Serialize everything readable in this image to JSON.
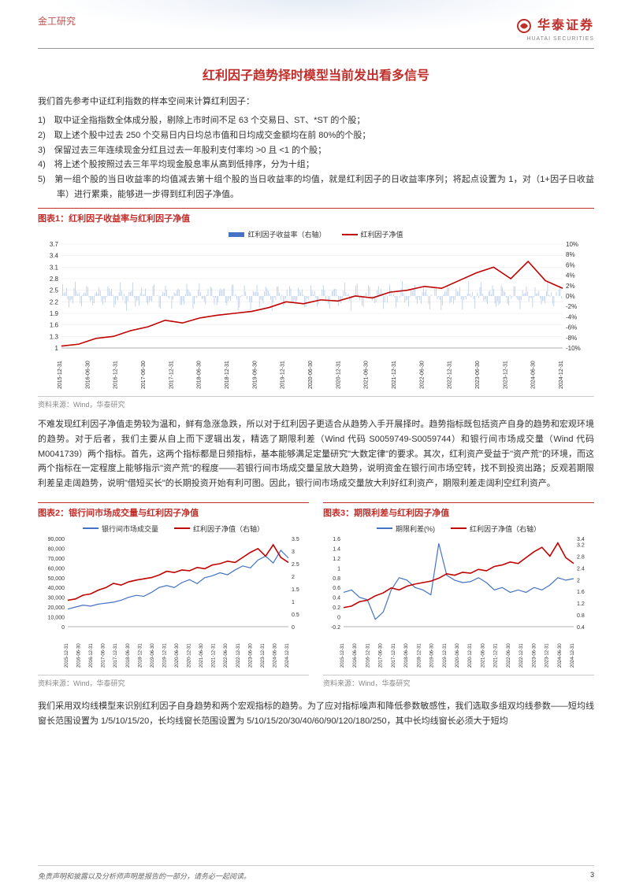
{
  "header": {
    "category": "金工研究",
    "logo_cn": "华泰证券",
    "logo_en": "HUATAI SECURITIES"
  },
  "title": "红利因子趋势择时模型当前发出看多信号",
  "intro": "我们首先参考中证红利指数的样本空间来计算红利因子：",
  "list": [
    "1)　取中证全指指数全体成分股，剔除上市时间不足 63 个交易日、ST、*ST 的个股；",
    "2)　取上述个股中过去 250 个交易日内日均总市值和日均成交金额均在前 80%的个股；",
    "3)　保留过去三年连续现金分红且过去一年股利支付率均 >0 且 <1 的个股；",
    "4)　将上述个股按照过去三年平均现金股息率从高到低排序，分为十组；",
    "5)　第一组个股的当日收益率的均值减去第十组个股的当日收益率的均值，就是红利因子的日收益率序列；将起点设置为 1，对（1+因子日收益率）进行累乘，能够进一步得到红利因子净值。"
  ],
  "chart1": {
    "title": "图表1：红利因子收益率与红利因子净值",
    "legend": [
      {
        "label": "红利因子收益率（右轴）",
        "color": "#4472c4"
      },
      {
        "label": "红利因子净值",
        "color": "#c00000"
      }
    ],
    "y_left_ticks": [
      1.0,
      1.3,
      1.6,
      1.9,
      2.2,
      2.5,
      2.8,
      3.1,
      3.4,
      3.7
    ],
    "y_right_ticks": [
      "-10%",
      "-8%",
      "-6%",
      "-4%",
      "-2%",
      "0%",
      "2%",
      "4%",
      "6%",
      "8%",
      "10%"
    ],
    "x_ticks": [
      "2015-12-31",
      "2016-06-30",
      "2016-12-31",
      "2017-06-30",
      "2017-12-31",
      "2018-06-30",
      "2018-12-31",
      "2019-06-30",
      "2019-12-31",
      "2020-06-30",
      "2020-12-31",
      "2021-06-30",
      "2021-12-31",
      "2022-06-30",
      "2022-12-31",
      "2023-06-30",
      "2023-12-31",
      "2024-06-30",
      "2024-12-31"
    ],
    "red_line": [
      1.05,
      1.1,
      1.25,
      1.3,
      1.45,
      1.55,
      1.72,
      1.65,
      1.78,
      1.85,
      1.9,
      1.95,
      2.05,
      2.2,
      2.15,
      2.25,
      2.22,
      2.35,
      2.3,
      2.45,
      2.5,
      2.6,
      2.55,
      2.75,
      2.95,
      3.1,
      2.8,
      3.25,
      2.75,
      2.55
    ],
    "source": "资料来源：Wind，华泰研究",
    "colors": {
      "grid": "#e0e0e0",
      "bg": "#ffffff"
    },
    "y_left_range": [
      1.0,
      3.7
    ],
    "y_right_range": [
      -10,
      10
    ]
  },
  "para2": "不难发现红利因子净值走势较为温和，鲜有急涨急跌，所以对于红利因子更适合从趋势入手开展择时。趋势指标既包括资产自身的趋势和宏观环境的趋势。对于后者，我们主要从自上而下逻辑出发，精选了期限利差（Wind 代码 S0059749-S0059744）和银行间市场成交量（Wind 代码 M0041739）两个指标。首先，这两个指标都是日频指标，基本能够满足定量研究\"大数定律\"的要求。其次，红利资产受益于\"资产荒\"的环境，而这两个指标在一定程度上能够指示\"资产荒\"的程度——若银行间市场成交量呈放大趋势，说明资金在银行间市场空转，找不到投资出路；反观若期限利差呈走阔趋势，说明\"借短买长\"的长期投资开始有利可图。因此，银行间市场成交量放大利好红利资产，期限利差走阔利空红利资产。",
  "chart2": {
    "title": "图表2：银行间市场成交量与红利因子净值",
    "legend": [
      {
        "label": "银行间市场成交量",
        "color": "#4472c4"
      },
      {
        "label": "红利因子净值（右轴）",
        "color": "#c00000"
      }
    ],
    "y_left_ticks": [
      0,
      10000,
      20000,
      30000,
      40000,
      50000,
      60000,
      70000,
      80000,
      90000
    ],
    "y_left_labels": [
      "0",
      "10,000",
      "20,000",
      "30,000",
      "40,000",
      "50,000",
      "60,000",
      "70,000",
      "80,000",
      "90,000"
    ],
    "y_right_ticks": [
      0,
      0.5,
      1.0,
      1.5,
      2.0,
      2.5,
      3.0,
      3.5
    ],
    "x_ticks": [
      "2015-12-31",
      "2016-06-30",
      "2016-12-31",
      "2017-06-30",
      "2017-12-31",
      "2018-06-30",
      "2018-12-31",
      "2019-06-30",
      "2019-12-31",
      "2020-06-30",
      "2020-12-31",
      "2021-06-30",
      "2021-12-31",
      "2022-06-30",
      "2022-12-31",
      "2023-06-30",
      "2023-12-31",
      "2024-06-30",
      "2024-12-31"
    ],
    "blue_line": [
      18000,
      20000,
      22000,
      21000,
      23000,
      24000,
      25000,
      27000,
      30000,
      32000,
      31000,
      35000,
      40000,
      42000,
      40000,
      45000,
      48000,
      44000,
      50000,
      52000,
      55000,
      53000,
      58000,
      62000,
      60000,
      68000,
      72000,
      65000,
      78000,
      70000
    ],
    "red_line": [
      1.05,
      1.1,
      1.25,
      1.3,
      1.45,
      1.55,
      1.72,
      1.65,
      1.78,
      1.85,
      1.9,
      1.95,
      2.05,
      2.2,
      2.15,
      2.25,
      2.22,
      2.35,
      2.3,
      2.45,
      2.5,
      2.6,
      2.55,
      2.75,
      2.95,
      3.1,
      2.8,
      3.25,
      2.75,
      2.55
    ],
    "source": "资料来源：Wind，华泰研究",
    "y_left_range": [
      0,
      90000
    ],
    "y_right_range": [
      0,
      3.5
    ]
  },
  "chart3": {
    "title": "图表3：期限利差与红利因子净值",
    "legend": [
      {
        "label": "期限利差(%)",
        "color": "#4472c4"
      },
      {
        "label": "红利因子净值（右轴）",
        "color": "#c00000"
      }
    ],
    "y_left_ticks": [
      -0.2,
      0,
      0.2,
      0.4,
      0.6,
      0.8,
      1.0,
      1.2,
      1.4,
      1.6
    ],
    "y_right_ticks": [
      0.4,
      0.8,
      1.2,
      1.6,
      2.0,
      2.4,
      2.8,
      3.2,
      3.4
    ],
    "x_ticks": [
      "2015-12-31",
      "2016-06-30",
      "2016-12-31",
      "2017-06-30",
      "2017-12-31",
      "2018-06-30",
      "2018-12-31",
      "2019-06-30",
      "2019-12-31",
      "2020-06-30",
      "2020-12-31",
      "2021-06-30",
      "2021-12-31",
      "2022-06-30",
      "2022-12-31",
      "2023-06-30",
      "2023-12-31",
      "2024-06-30",
      "2024-12-31"
    ],
    "blue_line": [
      0.5,
      0.55,
      0.4,
      0.35,
      -0.05,
      0.1,
      0.55,
      0.8,
      0.75,
      0.6,
      0.55,
      0.45,
      1.5,
      0.85,
      0.75,
      0.7,
      0.72,
      0.8,
      0.7,
      0.55,
      0.6,
      0.5,
      0.55,
      0.5,
      0.6,
      0.55,
      0.65,
      0.8,
      0.75,
      0.78
    ],
    "red_line": [
      1.05,
      1.1,
      1.25,
      1.3,
      1.45,
      1.55,
      1.72,
      1.65,
      1.78,
      1.85,
      1.9,
      1.95,
      2.05,
      2.2,
      2.15,
      2.25,
      2.22,
      2.35,
      2.3,
      2.45,
      2.5,
      2.6,
      2.55,
      2.75,
      2.95,
      3.1,
      2.8,
      3.25,
      2.75,
      2.55
    ],
    "source": "资料来源：Wind，华泰研究",
    "y_left_range": [
      -0.2,
      1.6
    ],
    "y_right_range": [
      0.4,
      3.4
    ]
  },
  "para3": "我们采用双均线模型来识别红利因子自身趋势和两个宏观指标的趋势。为了应对指标噪声和降低参数敏感性，我们选取多组双均线参数——短均线窗长范围设置为 1/5/10/15/20，长均线窗长范围设置为 5/10/15/20/30/40/60/90/120/180/250，其中长均线窗长必须大于短均",
  "footer": {
    "disclaimer": "免责声明和披露以及分析师声明是报告的一部分，请务必一起阅读。",
    "page": "3"
  }
}
